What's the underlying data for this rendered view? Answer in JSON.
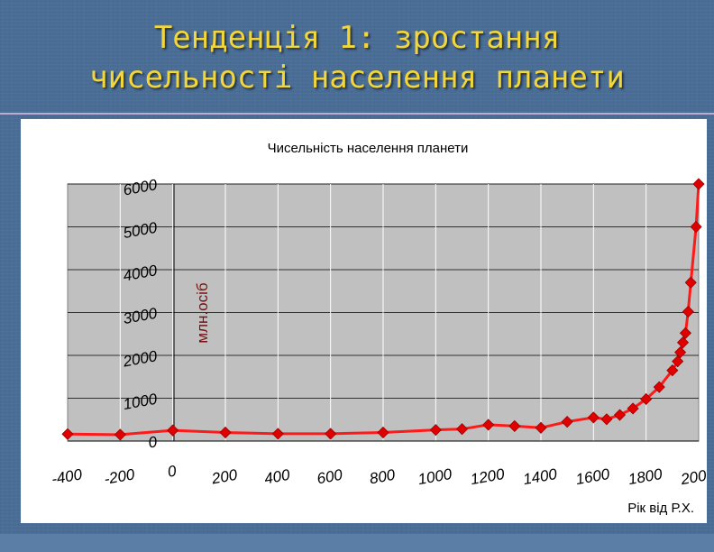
{
  "slide": {
    "title_line1": "Тенденція 1: зростання",
    "title_line2": "чисельності населення планети"
  },
  "colors": {
    "background": "#4a6d95",
    "title": "#f2d63a",
    "series_line": "#ff1a1a",
    "series_marker": "#e00000",
    "plot_area": "#c0c0c0"
  },
  "chart_data": {
    "type": "scatter",
    "title": "Чисельність населення планети",
    "xlabel": "Рік від Р.Х.",
    "ylabel": "млн.осіб",
    "xlim": [
      -400,
      2000
    ],
    "ylim": [
      0,
      6000
    ],
    "x_ticks": [
      "-400",
      "-200",
      "0",
      "200",
      "400",
      "600",
      "800",
      "1000",
      "1200",
      "1400",
      "1600",
      "1800",
      "2000"
    ],
    "y_ticks": [
      "0",
      "1000",
      "2000",
      "3000",
      "4000",
      "5000",
      "6000"
    ],
    "grid": true,
    "legend": "none",
    "series": [
      {
        "x": [
          -400,
          -200,
          0,
          200,
          400,
          600,
          800,
          1000,
          1100,
          1200,
          1300,
          1400,
          1500,
          1600,
          1650,
          1700,
          1750,
          1800,
          1850,
          1900,
          1920,
          1930,
          1940,
          1950,
          1960,
          1970,
          1990,
          2000
        ],
        "y": [
          162,
          150,
          250,
          200,
          170,
          170,
          200,
          260,
          280,
          380,
          350,
          310,
          450,
          550,
          510,
          610,
          760,
          980,
          1260,
          1650,
          1860,
          2070,
          2300,
          2520,
          3020,
          3700,
          5000,
          6000
        ]
      }
    ]
  }
}
